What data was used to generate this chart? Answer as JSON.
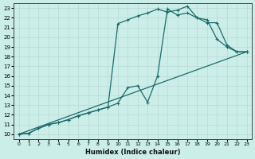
{
  "xlabel": "Humidex (Indice chaleur)",
  "bg_color": "#cceee8",
  "grid_color": "#b8d8d4",
  "line_color": "#1a6b6b",
  "xlim": [
    -0.5,
    23.5
  ],
  "ylim": [
    9.5,
    23.5
  ],
  "xticks": [
    0,
    1,
    2,
    3,
    4,
    5,
    6,
    7,
    8,
    9,
    10,
    11,
    12,
    13,
    14,
    15,
    16,
    17,
    18,
    19,
    20,
    21,
    22,
    23
  ],
  "yticks": [
    10,
    11,
    12,
    13,
    14,
    15,
    16,
    17,
    18,
    19,
    20,
    21,
    22,
    23
  ],
  "line1_x": [
    0,
    1,
    2,
    3,
    4,
    5,
    6,
    7,
    8,
    9,
    10,
    11,
    12,
    13,
    14,
    15,
    16,
    17,
    18,
    19,
    20,
    21,
    22,
    23
  ],
  "line1_y": [
    10.0,
    10.1,
    10.6,
    11.0,
    11.2,
    11.5,
    11.9,
    12.2,
    12.5,
    12.8,
    21.4,
    21.8,
    22.2,
    22.5,
    22.9,
    22.6,
    22.8,
    23.2,
    22.0,
    21.5,
    21.5,
    19.2,
    18.5,
    18.5
  ],
  "line2_x": [
    0,
    1,
    2,
    3,
    4,
    5,
    6,
    7,
    8,
    9,
    10,
    11,
    12,
    13,
    14,
    15,
    16,
    17,
    18,
    19,
    20,
    21,
    22,
    23
  ],
  "line2_y": [
    10.0,
    10.1,
    10.6,
    11.0,
    11.2,
    11.5,
    11.9,
    12.2,
    12.5,
    12.8,
    13.2,
    14.8,
    15.0,
    13.3,
    16.0,
    22.9,
    22.3,
    22.5,
    22.0,
    21.8,
    19.8,
    19.0,
    18.5,
    18.5
  ],
  "line3_x": [
    0,
    23
  ],
  "line3_y": [
    10.0,
    18.5
  ]
}
